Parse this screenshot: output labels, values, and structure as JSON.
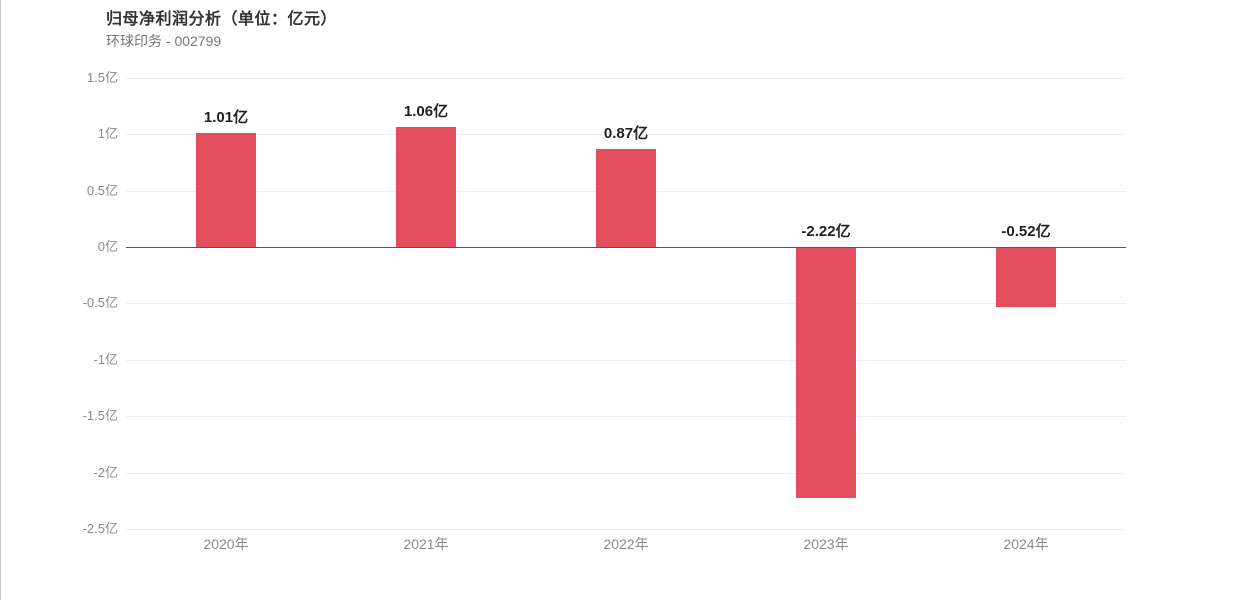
{
  "header": {
    "title": "归母净利润分析（单位：亿元）",
    "subtitle": "环球印务 - 002799"
  },
  "colors": {
    "bar": "#e44d5f",
    "grid": "#ececf2",
    "zero_line": "#565656",
    "title_text": "#333333",
    "subtitle_text": "#777777",
    "tick_text": "#8a8a8a",
    "bar_label_text": "#1f1f1f"
  },
  "chart_data": {
    "type": "bar",
    "title": "归母净利润分析（单位：亿元）",
    "subtitle": "环球印务 - 002799",
    "categories": [
      "2020年",
      "2021年",
      "2022年",
      "2023年",
      "2024年"
    ],
    "values": [
      1.01,
      1.06,
      0.87,
      -2.22,
      -0.52
    ],
    "value_labels": [
      "1.01亿",
      "1.06亿",
      "0.87亿",
      "-2.22亿",
      "-0.52亿"
    ],
    "unit": "亿",
    "xlabel": "",
    "ylabel": "",
    "ylim": [
      -2.5,
      1.5
    ],
    "y_ticks": [
      {
        "value": 1.5,
        "label": "1.5亿"
      },
      {
        "value": 1.0,
        "label": "1亿"
      },
      {
        "value": 0.5,
        "label": "0.5亿"
      },
      {
        "value": 0.0,
        "label": "0亿"
      },
      {
        "value": -0.5,
        "label": "-0.5亿"
      },
      {
        "value": -1.0,
        "label": "-1亿"
      },
      {
        "value": -1.5,
        "label": "-1.5亿"
      },
      {
        "value": -2.0,
        "label": "-2亿"
      },
      {
        "value": -2.5,
        "label": "-2.5亿"
      }
    ],
    "grid": true,
    "legend": false
  }
}
